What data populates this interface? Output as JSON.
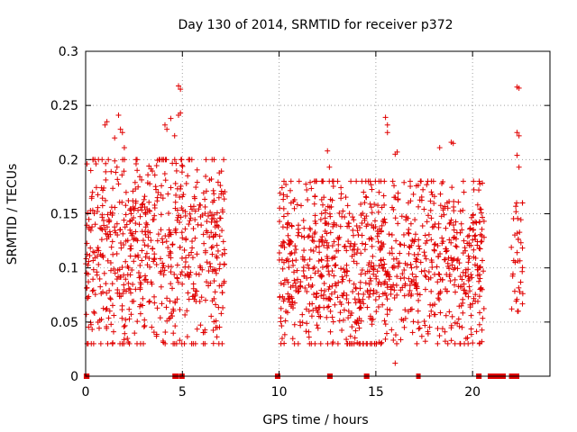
{
  "chart_data": {
    "type": "scatter",
    "title": "Day 130 of 2014, SRMTID for receiver p372",
    "xlabel": "GPS time / hours",
    "ylabel": "SRMTID / TECUs",
    "xlim": [
      0,
      24
    ],
    "ylim": [
      0,
      0.3
    ],
    "xticks": [
      0,
      5,
      10,
      15,
      20
    ],
    "xtick_labels": [
      "0",
      "5",
      "10",
      "15",
      "20"
    ],
    "yticks": [
      0,
      0.05,
      0.1,
      0.15,
      0.2,
      0.25,
      0.3
    ],
    "ytick_labels": [
      "0",
      "0.05",
      "0.1",
      "0.15",
      "0.2",
      "0.25",
      "0.3"
    ],
    "grid": true,
    "marker": "plus",
    "color": "#e00000",
    "data_segments": [
      {
        "start": 0.0,
        "end": 7.2,
        "ymin": 0.03,
        "ymax": 0.2,
        "density": 95
      },
      {
        "start": 10.0,
        "end": 20.6,
        "ymin": 0.03,
        "ymax": 0.18,
        "density": 95
      },
      {
        "start": 22.0,
        "end": 22.6,
        "ymin": 0.06,
        "ymax": 0.16,
        "density": 60
      }
    ],
    "outliers": [
      [
        1.0,
        0.232
      ],
      [
        1.1,
        0.235
      ],
      [
        1.5,
        0.22
      ],
      [
        1.7,
        0.241
      ],
      [
        1.8,
        0.228
      ],
      [
        1.9,
        0.225
      ],
      [
        2.0,
        0.211
      ],
      [
        4.1,
        0.232
      ],
      [
        4.2,
        0.228
      ],
      [
        4.4,
        0.238
      ],
      [
        4.6,
        0.222
      ],
      [
        4.8,
        0.241
      ],
      [
        4.9,
        0.243
      ],
      [
        4.8,
        0.268
      ],
      [
        4.9,
        0.265
      ],
      [
        6.5,
        0.182
      ],
      [
        12.5,
        0.208
      ],
      [
        12.6,
        0.193
      ],
      [
        15.5,
        0.239
      ],
      [
        15.6,
        0.232
      ],
      [
        15.6,
        0.225
      ],
      [
        16.0,
        0.205
      ],
      [
        16.1,
        0.207
      ],
      [
        18.3,
        0.211
      ],
      [
        18.9,
        0.216
      ],
      [
        19.0,
        0.215
      ],
      [
        22.3,
        0.267
      ],
      [
        22.4,
        0.266
      ],
      [
        22.3,
        0.225
      ],
      [
        22.4,
        0.222
      ],
      [
        22.3,
        0.204
      ],
      [
        22.4,
        0.193
      ],
      [
        16.0,
        0.012
      ]
    ],
    "zero_points": [
      0.02,
      0.05,
      0.08,
      4.6,
      4.65,
      4.7,
      4.95,
      5.0,
      9.9,
      9.95,
      12.6,
      12.65,
      14.5,
      14.55,
      17.2,
      20.3,
      20.35,
      20.9,
      21.0,
      21.1,
      21.2,
      21.3,
      21.4,
      21.5,
      21.6,
      22.0,
      22.1,
      22.2,
      22.3
    ]
  }
}
